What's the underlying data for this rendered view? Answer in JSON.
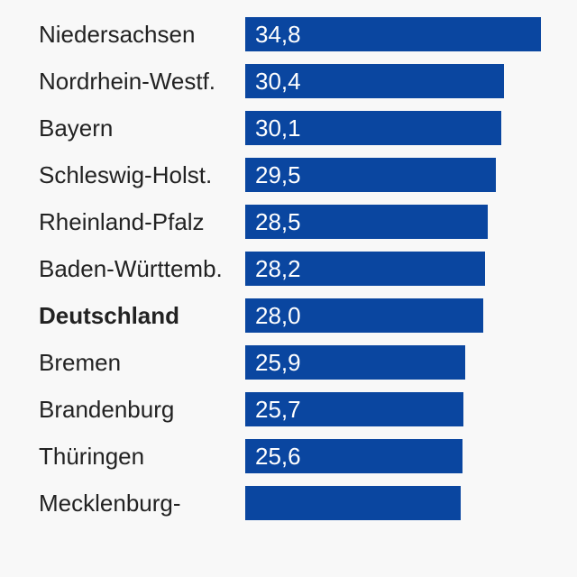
{
  "chart_data": {
    "type": "bar",
    "orientation": "horizontal",
    "categories": [
      "Niedersachsen",
      "Nordrhein-Westf.",
      "Bayern",
      "Schleswig-Holst.",
      "Rheinland-Pfalz",
      "Baden-Württemb.",
      "Deutschland",
      "Bremen",
      "Brandenburg",
      "Thüringen",
      "Mecklenburg-"
    ],
    "values": [
      34.8,
      30.4,
      30.1,
      29.5,
      28.5,
      28.2,
      28.0,
      25.9,
      25.7,
      25.6,
      25.4
    ],
    "value_labels": [
      "34,8",
      "30,4",
      "30,1",
      "29,5",
      "28,5",
      "28,2",
      "28,0",
      "25,9",
      "25,7",
      "25,6",
      null
    ],
    "color": "#0a46a0",
    "xlim": [
      0,
      35
    ],
    "bold_category_index": 6
  }
}
